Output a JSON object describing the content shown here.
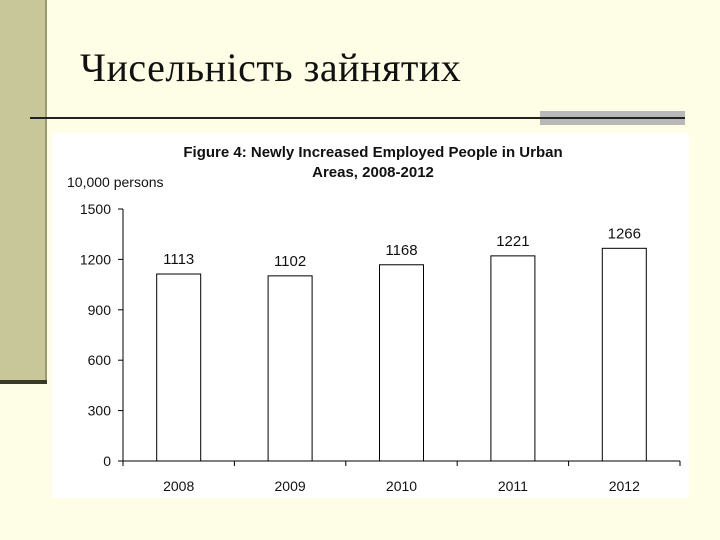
{
  "slide": {
    "title": "Чисельність зайнятих",
    "colors": {
      "background": "#fefee6",
      "sidebar": "#c7c79a",
      "rule": "#222222",
      "accent_block": "#b8b8b8"
    }
  },
  "chart_data": {
    "type": "bar",
    "title": "Figure 4: Newly Increased Employed People in Urban Areas, 2008-2012",
    "title_lines": [
      "Figure 4: Newly Increased Employed People in Urban",
      "Areas, 2008-2012"
    ],
    "unit_label": "10,000 persons",
    "xlabel": "",
    "ylabel": "",
    "categories": [
      "2008",
      "2009",
      "2010",
      "2011",
      "2012"
    ],
    "values": [
      1113,
      1102,
      1168,
      1221,
      1266
    ],
    "data_labels": [
      "1113",
      "1102",
      "1168",
      "1221",
      "1266"
    ],
    "ylim": [
      0,
      1500
    ],
    "yticks": [
      "0",
      "300",
      "600",
      "900",
      "1200",
      "1500"
    ],
    "grid": false,
    "legend": "none",
    "bar_fill": "#ffffff",
    "bar_stroke": "#000000"
  }
}
